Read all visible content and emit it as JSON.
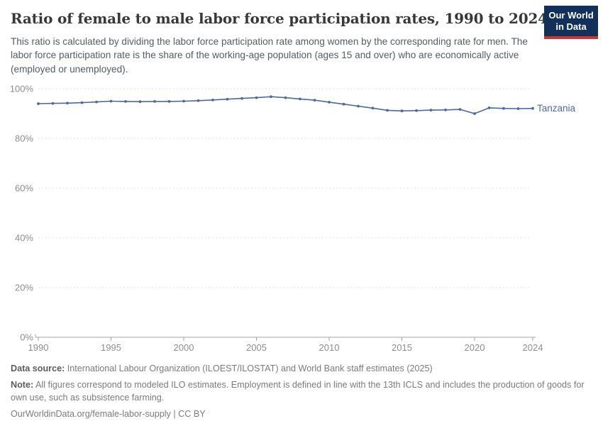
{
  "header": {
    "title": "Ratio of female to male labor force participation rates, 1990 to 2024",
    "subtitle": "This ratio is calculated by dividing the labor force participation rate among women by the corresponding rate for men. The labor force participation rate is the share of the working-age population (ages 15 and over) who are economically active (employed or unemployed).",
    "logo": {
      "line1": "Our World",
      "line2": "in Data",
      "bg_color": "#11315a",
      "accent_color": "#d0342c"
    }
  },
  "chart_data": {
    "type": "line",
    "title": "Ratio of female to male labor force participation rates, 1990 to 2024",
    "xlabel": "",
    "ylabel": "",
    "xlim": [
      1990,
      2024
    ],
    "ylim": [
      0,
      100
    ],
    "grid": "horizontal-dashed",
    "legend_position": "end-of-line-label",
    "x_ticks": [
      1990,
      1995,
      2000,
      2005,
      2010,
      2015,
      2020,
      2024
    ],
    "y_ticks": [
      {
        "value": 0,
        "label": "0%"
      },
      {
        "value": 20,
        "label": "20%"
      },
      {
        "value": 40,
        "label": "40%"
      },
      {
        "value": 60,
        "label": "60%"
      },
      {
        "value": 80,
        "label": "80%"
      },
      {
        "value": 100,
        "label": "100%"
      }
    ],
    "series": [
      {
        "name": "Tanzania",
        "color": "#4c6a9c",
        "x": [
          1990,
          1991,
          1992,
          1993,
          1994,
          1995,
          1996,
          1997,
          1998,
          1999,
          2000,
          2001,
          2002,
          2003,
          2004,
          2005,
          2006,
          2007,
          2008,
          2009,
          2010,
          2011,
          2012,
          2013,
          2014,
          2015,
          2016,
          2017,
          2018,
          2019,
          2020,
          2021,
          2022,
          2023,
          2024
        ],
        "values": [
          94.0,
          94.1,
          94.2,
          94.4,
          94.7,
          95.0,
          94.9,
          94.8,
          94.9,
          94.9,
          95.0,
          95.2,
          95.5,
          95.8,
          96.1,
          96.4,
          96.8,
          96.4,
          95.9,
          95.4,
          94.6,
          93.8,
          93.0,
          92.2,
          91.3,
          91.1,
          91.2,
          91.4,
          91.5,
          91.7,
          90.0,
          92.3,
          92.1,
          92.0,
          92.1
        ]
      }
    ]
  },
  "footer": {
    "datasource_label": "Data source:",
    "datasource_text": " International Labour Organization (ILOEST/ILOSTAT) and World Bank staff estimates (2025)",
    "note_label": "Note:",
    "note_text": " All figures correspond to modeled ILO estimates. Employment is defined in line with the 13th ICLS and includes the production of goods for own use, such as subsistence farming.",
    "citation_url": "OurWorldinData.org/female-labor-supply",
    "citation_license": " | CC BY"
  }
}
